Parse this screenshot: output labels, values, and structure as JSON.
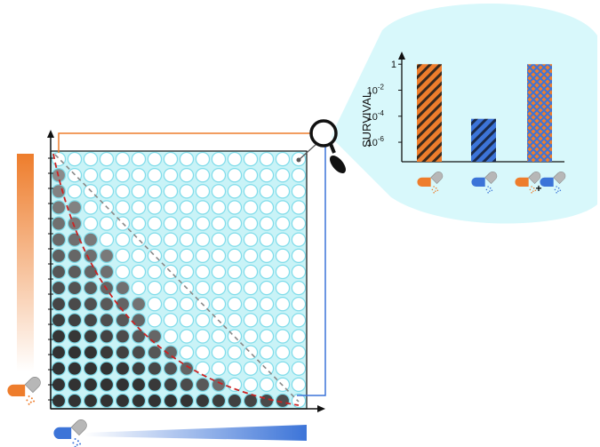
{
  "colors": {
    "orange": "#ee7d2c",
    "blue": "#3c74d8",
    "grid_bg": "#c9f3f7",
    "grid_line": "#7fdcea",
    "bubble_fill": "#d8f8fb",
    "red_curve": "#cc2222",
    "gray_line": "#888888",
    "axis": "#111111"
  },
  "inset": {
    "ylabel": "SURVIVAL",
    "ticks": [
      "1",
      "10",
      "10",
      "10"
    ],
    "tick_exponents": [
      "",
      "-2",
      "-4",
      "-6"
    ],
    "plus_sign": "+",
    "bars": [
      {
        "drug": "orange pill",
        "survival_log10": 0,
        "pattern": "orange-hatch"
      },
      {
        "drug": "blue pill",
        "survival_log10": -4.2,
        "pattern": "blue-hatch"
      },
      {
        "drug": "orange + blue pills",
        "survival_log10": 0,
        "pattern": "cross-hatch"
      }
    ]
  },
  "matrix": {
    "rows": 16,
    "cols": 16,
    "growth_levels_note_free": true
  },
  "icons": {
    "magnifier": "magnifier-icon",
    "orange_pill": "orange-pill-icon",
    "blue_pill": "blue-pill-icon"
  }
}
